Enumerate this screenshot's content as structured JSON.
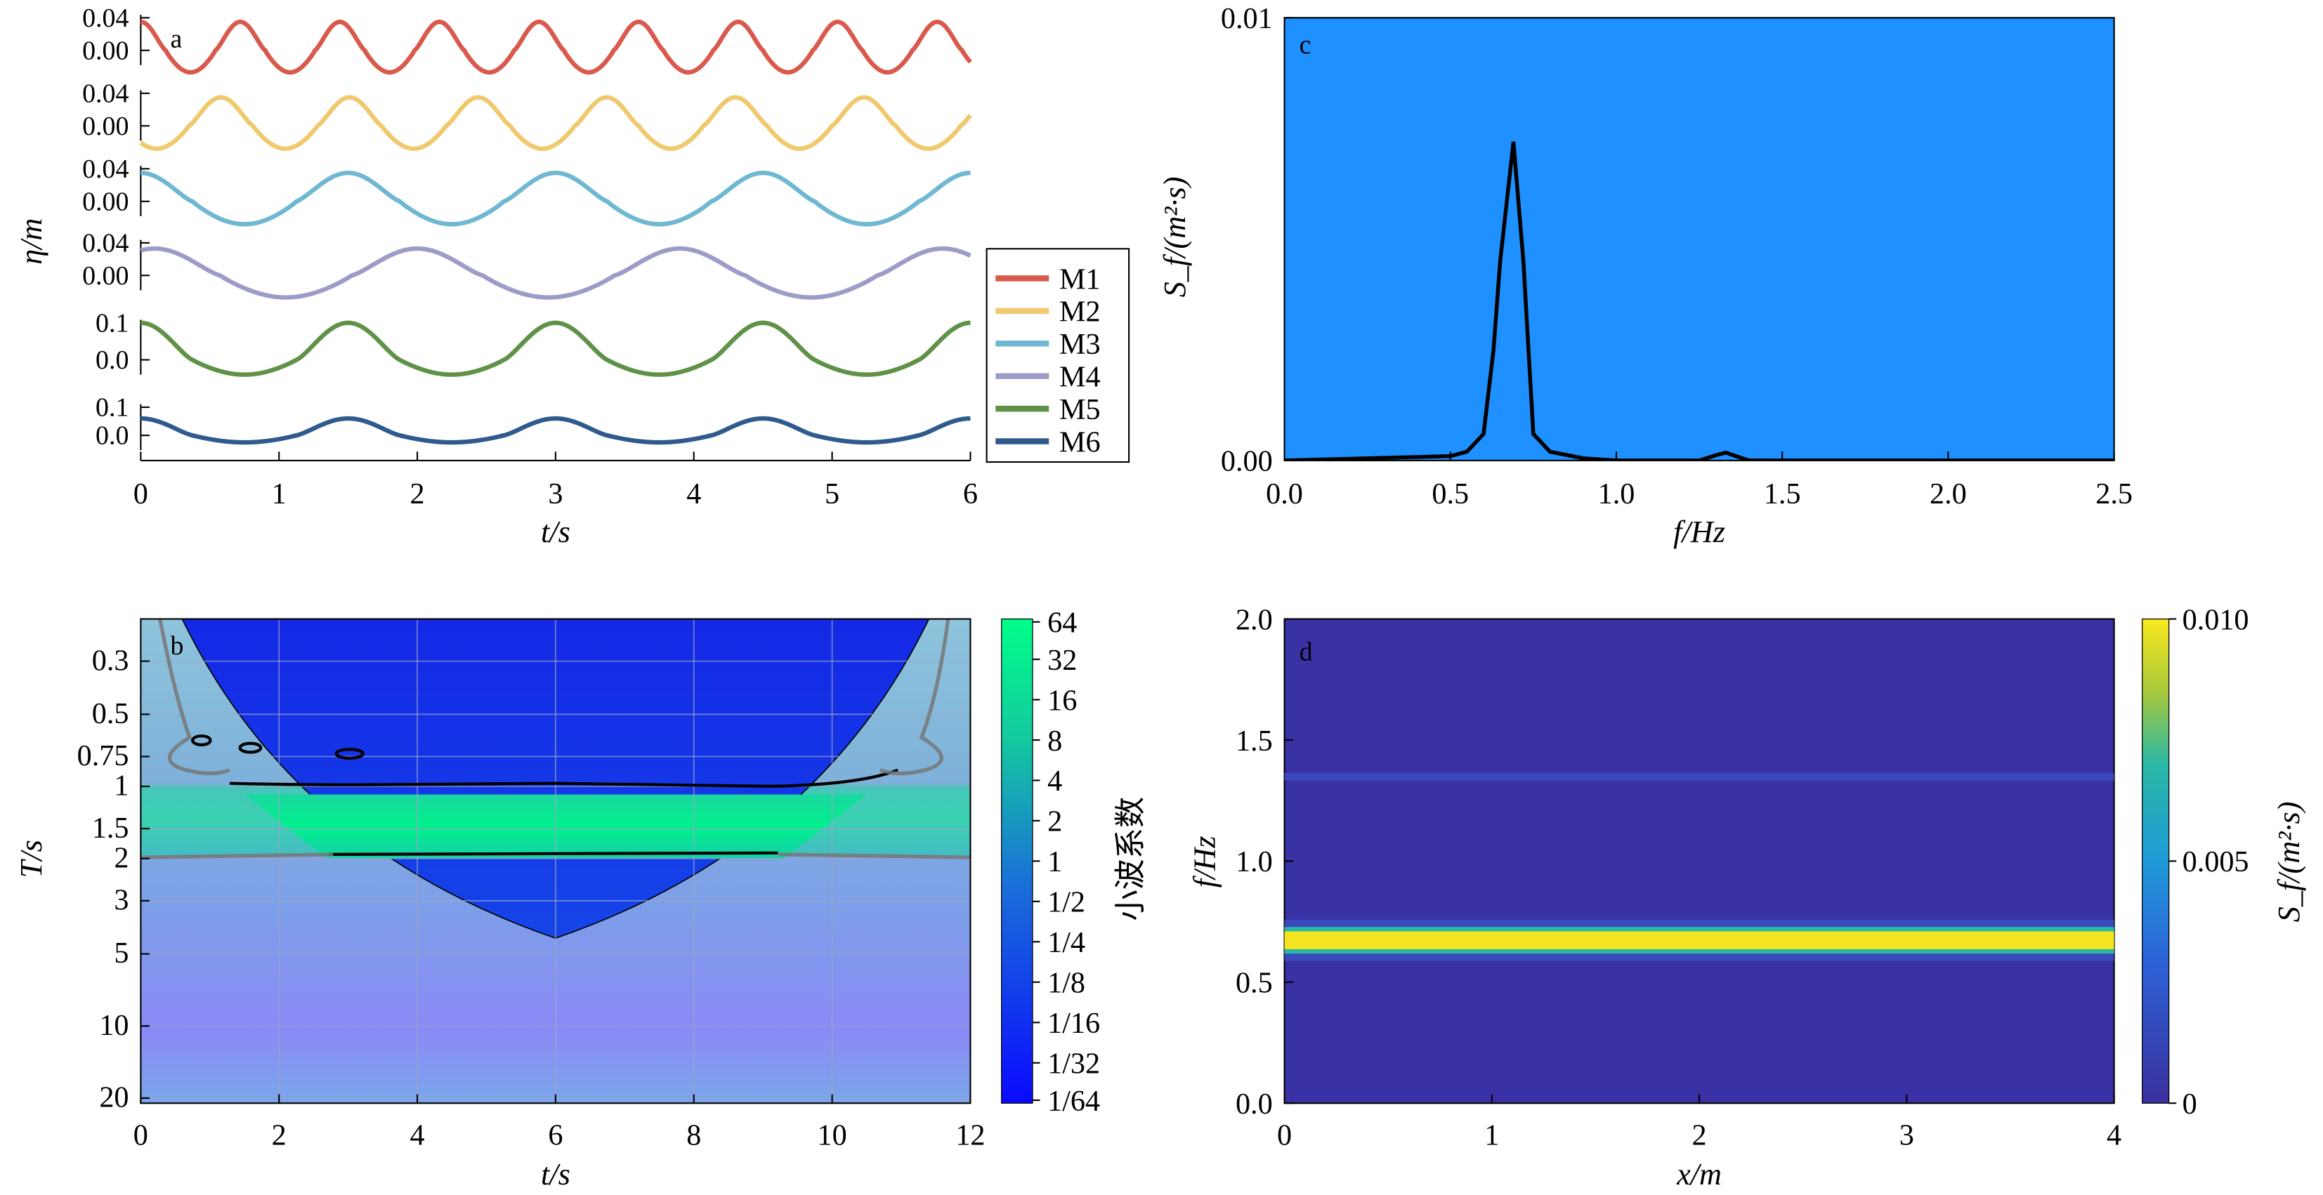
{
  "chart_data": [
    {
      "panel": "a",
      "type": "line",
      "title": "",
      "xlabel": "t/s",
      "ylabel": "η/m",
      "xlim": [
        0,
        6
      ],
      "xticks": [
        "0",
        "1",
        "2",
        "3",
        "4",
        "5",
        "6"
      ],
      "legend": {
        "placement": "right-outside",
        "entries": [
          "M1",
          "M2",
          "M3",
          "M4",
          "M5",
          "M6"
        ]
      },
      "series": [
        {
          "name": "M1",
          "color": "#d9594c",
          "yticks": [
            "0.04",
            "0.00"
          ],
          "ylim": [
            -0.05,
            0.05
          ],
          "period_s": 0.72,
          "crest": 0.035,
          "trough": -0.027,
          "phase_s": 0.0
        },
        {
          "name": "M2",
          "color": "#f0c96e",
          "yticks": [
            "0.04",
            "0.00"
          ],
          "ylim": [
            -0.05,
            0.05
          ],
          "period_s": 0.93,
          "crest": 0.035,
          "trough": -0.028,
          "phase_s": 0.58
        },
        {
          "name": "M3",
          "color": "#6fb7d2",
          "yticks": [
            "0.04",
            "0.00"
          ],
          "ylim": [
            -0.05,
            0.05
          ],
          "period_s": 1.5,
          "crest": 0.035,
          "trough": -0.028,
          "phase_s": 1.5
        },
        {
          "name": "M4",
          "color": "#9d9cc8",
          "yticks": [
            "0.04",
            "0.00"
          ],
          "ylim": [
            -0.05,
            0.05
          ],
          "period_s": 1.9,
          "crest": 0.033,
          "trough": -0.027,
          "phase_s": 2.0
        },
        {
          "name": "M5",
          "color": "#5f9248",
          "yticks": [
            "0.1",
            "0.0"
          ],
          "ylim": [
            -0.13,
            0.13
          ],
          "period_s": 1.5,
          "crest": 0.1,
          "trough": -0.04,
          "phase_s": 1.5
        },
        {
          "name": "M6",
          "color": "#2f5a8d",
          "yticks": [
            "0.1",
            "0.0"
          ],
          "ylim": [
            -0.13,
            0.13
          ],
          "period_s": 1.5,
          "crest": 0.06,
          "trough": -0.025,
          "phase_s": 1.5
        }
      ]
    },
    {
      "panel": "b",
      "type": "heatmap",
      "title": "",
      "xlabel": "t/s",
      "ylabel": "T/s",
      "xlim": [
        0,
        12
      ],
      "xticks": [
        "0",
        "2",
        "4",
        "6",
        "8",
        "10",
        "12"
      ],
      "ylim": [
        0.2,
        21
      ],
      "yscale": "log",
      "yticks": [
        {
          "value": 0.3,
          "label": "0.3"
        },
        {
          "value": 0.5,
          "label": "0.5"
        },
        {
          "value": 0.75,
          "label": "0.75"
        },
        {
          "value": 1,
          "label": "1"
        },
        {
          "value": 1.5,
          "label": "1.5"
        },
        {
          "value": 2,
          "label": "2"
        },
        {
          "value": 3,
          "label": "3"
        },
        {
          "value": 5,
          "label": "5"
        },
        {
          "value": 10,
          "label": "10"
        },
        {
          "value": 20,
          "label": "20"
        }
      ],
      "grid": true,
      "colorbar": {
        "label": "小波系数",
        "ticks": [
          "64",
          "32",
          "16",
          "8",
          "4",
          "2",
          "1",
          "1/2",
          "1/4",
          "1/8",
          "1/16",
          "1/32",
          "1/64"
        ],
        "colors": [
          "#1414ff",
          "#00ff88"
        ]
      },
      "band_periods_s": [
        1.5,
        2.0
      ],
      "cone_of_influence_apex": {
        "t": 6,
        "T": 4.3
      }
    },
    {
      "panel": "c",
      "type": "line",
      "title": "",
      "xlabel": "f/Hz",
      "ylabel": "S_f/(m²·s)",
      "xlim": [
        0,
        2.5
      ],
      "ylim": [
        0,
        0.01
      ],
      "xticks": [
        "0.0",
        "0.5",
        "1.0",
        "1.5",
        "2.0",
        "2.5"
      ],
      "yticks": [
        "0.00",
        "0.01"
      ],
      "background": "#1e90ff",
      "x": [
        0.0,
        0.5,
        0.55,
        0.6,
        0.63,
        0.65,
        0.69,
        0.72,
        0.75,
        0.8,
        0.9,
        1.0,
        1.25,
        1.3,
        1.33,
        1.36,
        1.4,
        2.0,
        2.5
      ],
      "y": [
        0.0,
        0.0001,
        0.0002,
        0.0006,
        0.0025,
        0.0045,
        0.0072,
        0.0045,
        0.0006,
        0.0002,
        5e-05,
        0.0,
        0.0,
        0.00012,
        0.00018,
        0.0001,
        0.0,
        0.0,
        0.0
      ]
    },
    {
      "panel": "d",
      "type": "heatmap",
      "title": "",
      "xlabel": "x/m",
      "ylabel": "f/Hz",
      "xlim": [
        0,
        4
      ],
      "ylim": [
        0,
        2
      ],
      "xticks": [
        "0",
        "1",
        "2",
        "3",
        "4"
      ],
      "yticks": [
        "0.0",
        "0.5",
        "1.0",
        "1.5",
        "2.0"
      ],
      "colorbar": {
        "label": "S_f/(m²·s)",
        "ticks": [
          "0",
          "0.005",
          "0.010"
        ],
        "colors": [
          "#3b2f9e",
          "#1f8fd8",
          "#2ab8a5",
          "#a8c93b",
          "#f9e81f"
        ]
      },
      "peak_band_hz": [
        0.65,
        0.7
      ],
      "secondary_band_hz": 1.35
    }
  ]
}
